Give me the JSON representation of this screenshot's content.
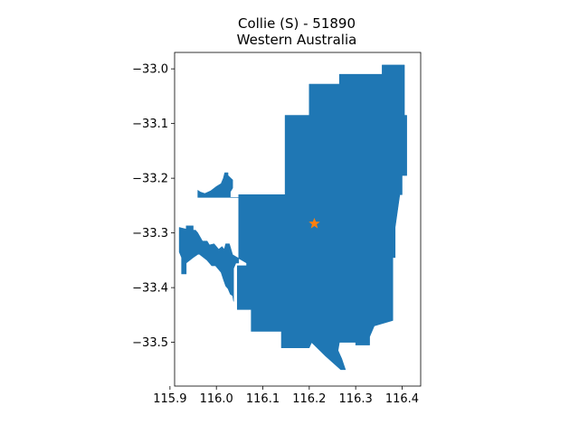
{
  "chart_data": {
    "type": "map",
    "title": "Collie (S) - 51890",
    "subtitle": "Western Australia",
    "xlabel": "",
    "ylabel": "",
    "xlim": [
      115.91,
      116.44
    ],
    "ylim": [
      -33.58,
      -32.97
    ],
    "x_ticks": [
      115.9,
      116.0,
      116.1,
      116.2,
      116.3,
      116.4
    ],
    "x_tick_labels": [
      "115.9",
      "116.0",
      "116.1",
      "116.2",
      "116.3",
      "116.4"
    ],
    "y_ticks": [
      -33.0,
      -33.1,
      -33.2,
      -33.3,
      -33.4,
      -33.5
    ],
    "y_tick_labels": [
      "−33.0",
      "−33.1",
      "−33.2",
      "−33.3",
      "−33.4",
      "−33.5"
    ],
    "grid": false,
    "region": {
      "name": "Collie (S)",
      "fill": "#1f77b4",
      "boundary": [
        [
          116.357,
          -32.993
        ],
        [
          116.405,
          -32.993
        ],
        [
          116.405,
          -33.085
        ],
        [
          116.41,
          -33.085
        ],
        [
          116.41,
          -33.195
        ],
        [
          116.4,
          -33.195
        ],
        [
          116.4,
          -33.23
        ],
        [
          116.395,
          -33.23
        ],
        [
          116.385,
          -33.29
        ],
        [
          116.385,
          -33.345
        ],
        [
          116.38,
          -33.345
        ],
        [
          116.38,
          -33.46
        ],
        [
          116.34,
          -33.47
        ],
        [
          116.33,
          -33.49
        ],
        [
          116.33,
          -33.505
        ],
        [
          116.3,
          -33.505
        ],
        [
          116.3,
          -33.5
        ],
        [
          116.265,
          -33.5
        ],
        [
          116.262,
          -33.515
        ],
        [
          116.27,
          -33.53
        ],
        [
          116.278,
          -33.55
        ],
        [
          116.268,
          -33.55
        ],
        [
          116.235,
          -33.525
        ],
        [
          116.205,
          -33.5
        ],
        [
          116.2,
          -33.51
        ],
        [
          116.14,
          -33.51
        ],
        [
          116.14,
          -33.48
        ],
        [
          116.075,
          -33.48
        ],
        [
          116.075,
          -33.44
        ],
        [
          116.045,
          -33.44
        ],
        [
          116.045,
          -33.36
        ],
        [
          116.065,
          -33.36
        ],
        [
          116.065,
          -33.355
        ],
        [
          116.035,
          -33.34
        ],
        [
          116.028,
          -33.32
        ],
        [
          116.02,
          -33.32
        ],
        [
          116.017,
          -33.33
        ],
        [
          116.012,
          -33.325
        ],
        [
          116.005,
          -33.33
        ],
        [
          116.0,
          -33.325
        ],
        [
          115.995,
          -33.32
        ],
        [
          115.985,
          -33.322
        ],
        [
          115.98,
          -33.315
        ],
        [
          115.97,
          -33.315
        ],
        [
          115.96,
          -33.3
        ],
        [
          115.955,
          -33.295
        ],
        [
          115.95,
          -33.295
        ],
        [
          115.95,
          -33.287
        ],
        [
          115.935,
          -33.287
        ],
        [
          115.935,
          -33.293
        ],
        [
          115.92,
          -33.29
        ],
        [
          115.92,
          -33.335
        ],
        [
          115.925,
          -33.345
        ],
        [
          115.925,
          -33.375
        ],
        [
          115.935,
          -33.375
        ],
        [
          115.935,
          -33.355
        ],
        [
          115.95,
          -33.345
        ],
        [
          115.962,
          -33.338
        ],
        [
          115.98,
          -33.35
        ],
        [
          115.99,
          -33.36
        ],
        [
          115.998,
          -33.36
        ],
        [
          116.01,
          -33.372
        ],
        [
          116.015,
          -33.385
        ],
        [
          116.02,
          -33.397
        ],
        [
          116.025,
          -33.402
        ],
        [
          116.03,
          -33.412
        ],
        [
          116.035,
          -33.415
        ],
        [
          116.037,
          -33.425
        ],
        [
          116.037,
          -33.365
        ],
        [
          116.042,
          -33.355
        ],
        [
          116.048,
          -33.355
        ],
        [
          116.048,
          -33.235
        ],
        [
          116.03,
          -33.235
        ],
        [
          116.03,
          -33.225
        ],
        [
          116.035,
          -33.218
        ],
        [
          116.035,
          -33.203
        ],
        [
          116.025,
          -33.195
        ],
        [
          116.025,
          -33.19
        ],
        [
          116.018,
          -33.19
        ],
        [
          116.015,
          -33.2
        ],
        [
          116.01,
          -33.21
        ],
        [
          116.0,
          -33.215
        ],
        [
          115.988,
          -33.223
        ],
        [
          115.975,
          -33.228
        ],
        [
          115.965,
          -33.225
        ],
        [
          115.96,
          -33.222
        ],
        [
          115.96,
          -33.235
        ],
        [
          116.048,
          -33.235
        ],
        [
          116.048,
          -33.23
        ],
        [
          116.148,
          -33.23
        ],
        [
          116.148,
          -33.085
        ],
        [
          116.2,
          -33.085
        ],
        [
          116.2,
          -33.028
        ],
        [
          116.265,
          -33.028
        ],
        [
          116.265,
          -33.01
        ],
        [
          116.357,
          -33.01
        ]
      ]
    },
    "marker": {
      "type": "star",
      "x": 116.211,
      "y": -33.283,
      "color": "#ff7f0e"
    }
  }
}
